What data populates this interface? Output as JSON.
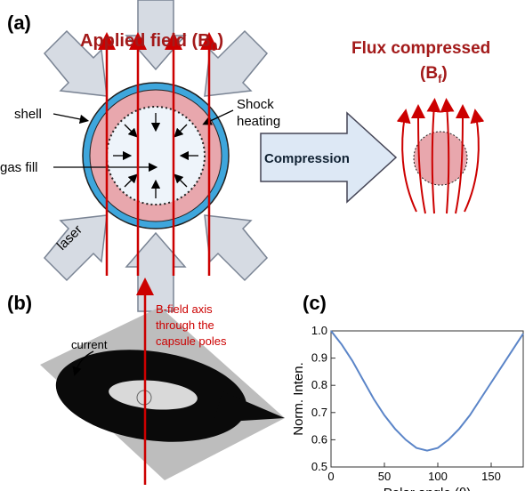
{
  "panel_a": {
    "label": "(a)",
    "field_main": "Applied field (B",
    "field_sub": "0",
    "field_end": ")",
    "shock_1": "Shock",
    "shock_2": "heating",
    "shell": "shell",
    "gas": "gas fill",
    "laser": "laser",
    "compression": "Compression",
    "flux_1": "Flux compressed",
    "flux_2": "(B",
    "flux_sub": "f",
    "flux_end": ")"
  },
  "panel_b": {
    "label": "(b)",
    "axis_1": "B-field axis",
    "axis_2": "through the",
    "axis_3": "capsule poles",
    "current": "current"
  },
  "panel_c": {
    "label": "(c)"
  },
  "chart_data": {
    "type": "line",
    "xlabel": "Polar angle (θ)",
    "ylabel": "Norm. Inten.",
    "x": [
      0,
      10,
      20,
      30,
      40,
      50,
      60,
      70,
      80,
      90,
      100,
      110,
      120,
      130,
      140,
      150,
      160,
      170,
      180
    ],
    "series": [
      {
        "color": "#5b85c8",
        "values": [
          1.0,
          0.95,
          0.89,
          0.82,
          0.75,
          0.69,
          0.64,
          0.6,
          0.57,
          0.56,
          0.57,
          0.6,
          0.64,
          0.69,
          0.75,
          0.81,
          0.87,
          0.93,
          0.99
        ]
      }
    ],
    "xlim": [
      0,
      180
    ],
    "xticks": [
      0,
      50,
      100,
      150
    ],
    "ylim": [
      0.5,
      1.0
    ],
    "yticks": [
      0.5,
      0.6,
      0.7,
      0.8,
      0.9,
      {
        "value": 1.0,
        "label": "1.0"
      }
    ]
  }
}
